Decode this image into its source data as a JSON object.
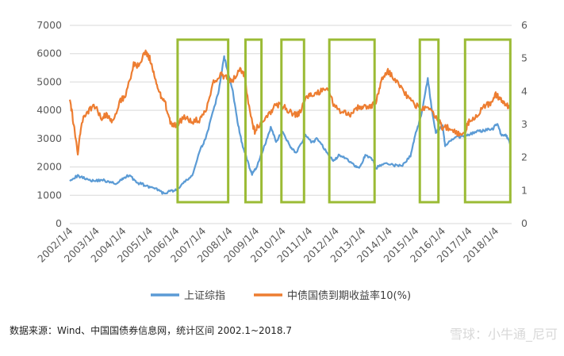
{
  "chart_data": {
    "type": "line",
    "x_categories": [
      "2002/1/4",
      "2003/1/4",
      "2004/1/4",
      "2005/1/4",
      "2006/1/4",
      "2007/1/4",
      "2008/1/4",
      "2009/1/4",
      "2010/1/4",
      "2011/1/4",
      "2012/1/4",
      "2013/1/4",
      "2014/1/4",
      "2015/1/4",
      "2016/1/4",
      "2017/1/4",
      "2018/1/4"
    ],
    "x_range": [
      2002.0,
      2018.6
    ],
    "y_left": {
      "ticks": [
        "0",
        "1000",
        "2000",
        "3000",
        "4000",
        "5000",
        "6000",
        "7000"
      ],
      "range": [
        0,
        7000
      ]
    },
    "y_right": {
      "ticks": [
        "0",
        "1",
        "2",
        "3",
        "4",
        "5",
        "6"
      ],
      "range": [
        0,
        6
      ]
    },
    "series": [
      {
        "name": "上证综指",
        "axis": "left",
        "color": "#5B9BD5",
        "points": [
          [
            2002.0,
            1550
          ],
          [
            2002.3,
            1680
          ],
          [
            2002.6,
            1600
          ],
          [
            2002.9,
            1500
          ],
          [
            2003.2,
            1550
          ],
          [
            2003.5,
            1450
          ],
          [
            2003.8,
            1420
          ],
          [
            2004.0,
            1600
          ],
          [
            2004.25,
            1720
          ],
          [
            2004.5,
            1450
          ],
          [
            2004.75,
            1380
          ],
          [
            2005.0,
            1280
          ],
          [
            2005.3,
            1200
          ],
          [
            2005.5,
            1070
          ],
          [
            2005.8,
            1150
          ],
          [
            2006.0,
            1180
          ],
          [
            2006.3,
            1450
          ],
          [
            2006.6,
            1700
          ],
          [
            2006.9,
            2600
          ],
          [
            2007.1,
            3000
          ],
          [
            2007.4,
            4000
          ],
          [
            2007.6,
            4700
          ],
          [
            2007.8,
            5900
          ],
          [
            2007.9,
            5500
          ],
          [
            2008.1,
            4800
          ],
          [
            2008.3,
            3600
          ],
          [
            2008.5,
            2700
          ],
          [
            2008.75,
            2000
          ],
          [
            2008.85,
            1750
          ],
          [
            2009.0,
            1950
          ],
          [
            2009.3,
            2700
          ],
          [
            2009.55,
            3400
          ],
          [
            2009.75,
            2900
          ],
          [
            2010.0,
            3250
          ],
          [
            2010.3,
            2700
          ],
          [
            2010.5,
            2500
          ],
          [
            2010.85,
            3100
          ],
          [
            2011.1,
            2850
          ],
          [
            2011.3,
            3000
          ],
          [
            2011.6,
            2600
          ],
          [
            2011.9,
            2200
          ],
          [
            2012.1,
            2400
          ],
          [
            2012.4,
            2300
          ],
          [
            2012.7,
            2050
          ],
          [
            2012.9,
            2000
          ],
          [
            2013.1,
            2400
          ],
          [
            2013.4,
            2250
          ],
          [
            2013.5,
            1950
          ],
          [
            2013.8,
            2150
          ],
          [
            2014.2,
            2050
          ],
          [
            2014.5,
            2050
          ],
          [
            2014.8,
            2400
          ],
          [
            2015.0,
            3200
          ],
          [
            2015.2,
            3800
          ],
          [
            2015.45,
            5150
          ],
          [
            2015.6,
            4000
          ],
          [
            2015.75,
            3200
          ],
          [
            2016.0,
            3500
          ],
          [
            2016.1,
            2750
          ],
          [
            2016.4,
            3000
          ],
          [
            2016.8,
            3100
          ],
          [
            2017.0,
            3150
          ],
          [
            2017.3,
            3250
          ],
          [
            2017.6,
            3300
          ],
          [
            2017.9,
            3350
          ],
          [
            2018.05,
            3550
          ],
          [
            2018.2,
            3150
          ],
          [
            2018.4,
            3100
          ],
          [
            2018.55,
            2800
          ]
        ]
      },
      {
        "name": "中债国债到期收益率10(%)",
        "axis": "right",
        "color": "#ED7D31",
        "points": [
          [
            2002.0,
            3.75
          ],
          [
            2002.15,
            3.0
          ],
          [
            2002.3,
            2.1
          ],
          [
            2002.45,
            3.1
          ],
          [
            2002.7,
            3.4
          ],
          [
            2002.9,
            3.6
          ],
          [
            2003.2,
            3.2
          ],
          [
            2003.4,
            3.3
          ],
          [
            2003.6,
            3.1
          ],
          [
            2003.9,
            3.7
          ],
          [
            2004.1,
            3.9
          ],
          [
            2004.4,
            4.8
          ],
          [
            2004.6,
            4.8
          ],
          [
            2004.85,
            5.2
          ],
          [
            2005.0,
            5.0
          ],
          [
            2005.2,
            4.4
          ],
          [
            2005.4,
            3.9
          ],
          [
            2005.6,
            3.6
          ],
          [
            2005.8,
            3.0
          ],
          [
            2006.0,
            3.0
          ],
          [
            2006.3,
            3.2
          ],
          [
            2006.6,
            3.1
          ],
          [
            2006.9,
            3.15
          ],
          [
            2007.1,
            3.4
          ],
          [
            2007.4,
            4.3
          ],
          [
            2007.7,
            4.5
          ],
          [
            2007.9,
            4.4
          ],
          [
            2008.1,
            4.3
          ],
          [
            2008.4,
            4.7
          ],
          [
            2008.55,
            4.5
          ],
          [
            2008.8,
            3.2
          ],
          [
            2008.95,
            2.8
          ],
          [
            2009.2,
            3.1
          ],
          [
            2009.5,
            3.3
          ],
          [
            2009.7,
            3.6
          ],
          [
            2009.9,
            3.6
          ],
          [
            2010.1,
            3.5
          ],
          [
            2010.4,
            3.3
          ],
          [
            2010.6,
            3.3
          ],
          [
            2010.9,
            3.8
          ],
          [
            2011.1,
            3.9
          ],
          [
            2011.4,
            4.0
          ],
          [
            2011.7,
            4.1
          ],
          [
            2011.9,
            3.6
          ],
          [
            2012.2,
            3.4
          ],
          [
            2012.5,
            3.3
          ],
          [
            2012.8,
            3.5
          ],
          [
            2013.0,
            3.55
          ],
          [
            2013.3,
            3.5
          ],
          [
            2013.5,
            3.7
          ],
          [
            2013.7,
            4.3
          ],
          [
            2013.95,
            4.6
          ],
          [
            2014.1,
            4.5
          ],
          [
            2014.4,
            4.2
          ],
          [
            2014.7,
            3.8
          ],
          [
            2014.95,
            3.6
          ],
          [
            2015.2,
            3.5
          ],
          [
            2015.5,
            3.5
          ],
          [
            2015.8,
            3.2
          ],
          [
            2016.0,
            2.9
          ],
          [
            2016.3,
            2.9
          ],
          [
            2016.6,
            2.7
          ],
          [
            2016.85,
            2.8
          ],
          [
            2017.0,
            3.1
          ],
          [
            2017.3,
            3.3
          ],
          [
            2017.6,
            3.55
          ],
          [
            2017.8,
            3.65
          ],
          [
            2018.0,
            3.9
          ],
          [
            2018.2,
            3.75
          ],
          [
            2018.4,
            3.6
          ],
          [
            2018.55,
            3.5
          ]
        ]
      }
    ],
    "highlight_periods": [
      [
        2006.05,
        2007.95
      ],
      [
        2008.6,
        2009.2
      ],
      [
        2009.95,
        2010.8
      ],
      [
        2011.75,
        2013.45
      ],
      [
        2015.15,
        2015.85
      ],
      [
        2016.85,
        2018.55
      ]
    ],
    "highlight_color": "#9BBB35",
    "legend_position": "bottom"
  },
  "source_note": "数据来源：Wind、中国国债券信息网，统计区间 2002.1~2018.7",
  "watermark": "雪球：小牛通_尼可"
}
